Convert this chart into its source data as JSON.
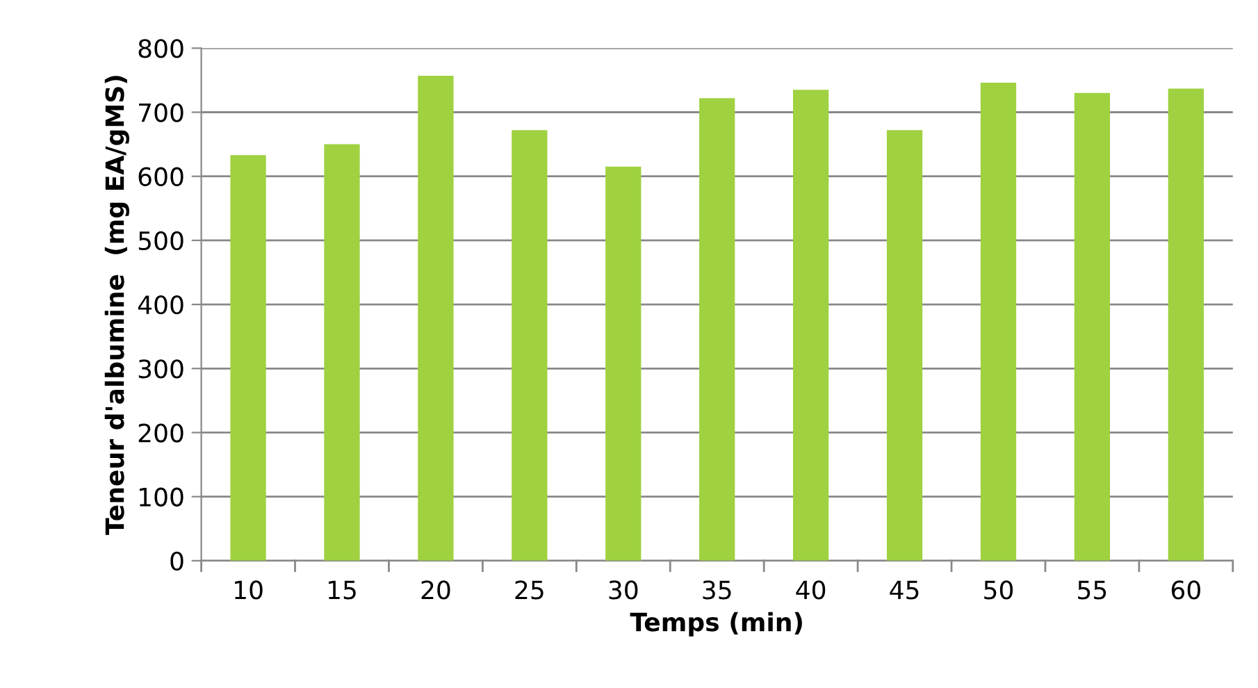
{
  "chart_data": {
    "type": "bar",
    "xlabel": "Temps (min)",
    "ylabel": "Teneur d'albumine  (mg EA/gMS)",
    "categories": [
      "10",
      "15",
      "20",
      "25",
      "30",
      "35",
      "40",
      "45",
      "50",
      "55",
      "60"
    ],
    "values": [
      633,
      650,
      757,
      672,
      615,
      722,
      735,
      672,
      746,
      730,
      737
    ],
    "color": "#9fd140",
    "ylim": [
      0,
      800
    ],
    "yticks": [
      0,
      100,
      200,
      300,
      400,
      500,
      600,
      700,
      800
    ],
    "grid": "y",
    "legend": false
  }
}
